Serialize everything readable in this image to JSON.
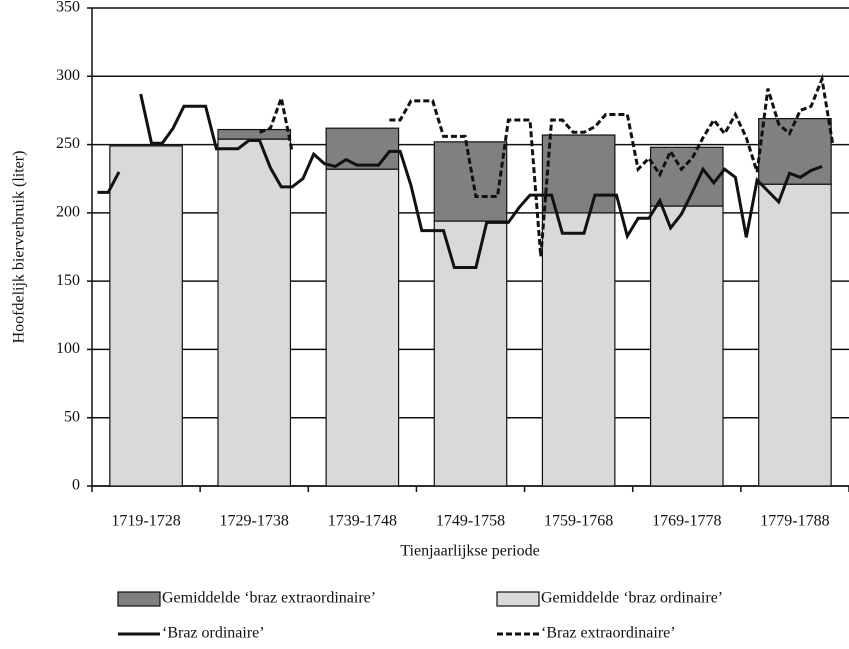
{
  "chart_data": {
    "type": "bar",
    "y_label": "Hoofdelijk bierverbruik (liter)",
    "x_label": "Tienjaarlijkse periode",
    "categories": [
      "1719-1728",
      "1729-1738",
      "1739-1748",
      "1749-1758",
      "1759-1768",
      "1769-1778",
      "1779-1788"
    ],
    "ylim": [
      0,
      350
    ],
    "yticks": [
      0,
      50,
      100,
      150,
      200,
      250,
      300,
      350
    ],
    "grid": true,
    "xlim": [
      1718.5,
      1788.5
    ],
    "x": [
      1719,
      1720,
      1721,
      1722,
      1723,
      1724,
      1725,
      1726,
      1727,
      1728,
      1729,
      1730,
      1731,
      1732,
      1733,
      1734,
      1735,
      1736,
      1737,
      1738,
      1739,
      1740,
      1741,
      1742,
      1743,
      1744,
      1745,
      1746,
      1747,
      1748,
      1749,
      1750,
      1751,
      1752,
      1753,
      1754,
      1755,
      1756,
      1757,
      1758,
      1759,
      1760,
      1761,
      1762,
      1763,
      1764,
      1765,
      1766,
      1767,
      1768,
      1769,
      1770,
      1771,
      1772,
      1773,
      1774,
      1775,
      1776,
      1777,
      1778,
      1779,
      1780,
      1781,
      1782,
      1783,
      1784,
      1785,
      1786,
      1787
    ],
    "series": [
      {
        "name": "Gemiddelde ‘braz extraordinaire’",
        "type": "bar",
        "color": "#808080",
        "values": [
          0,
          7,
          30,
          58,
          57,
          43,
          48
        ]
      },
      {
        "name": "Gemiddelde ‘braz ordinaire’",
        "type": "bar",
        "color": "#d9d9d9",
        "values": [
          249,
          254,
          232,
          194,
          200,
          205,
          221
        ]
      },
      {
        "name": "‘Braz ordinaire’",
        "type": "line",
        "color": "#111111",
        "dash": false,
        "values": [
          215,
          215,
          230,
          null,
          287,
          251,
          251,
          262,
          278,
          278,
          278,
          247,
          247,
          247,
          253,
          253,
          233,
          219,
          219,
          225,
          243,
          236,
          234,
          239,
          235,
          235,
          235,
          245,
          245,
          220,
          187,
          187,
          187,
          160,
          160,
          160,
          193,
          193,
          193,
          204,
          213,
          213,
          213,
          185,
          185,
          185,
          213,
          213,
          213,
          183,
          196,
          196,
          209,
          189,
          199,
          215,
          232,
          222,
          232,
          226,
          182,
          224,
          216,
          208,
          229,
          226,
          231,
          234,
          null
        ]
      },
      {
        "name": "‘Braz extraordinaire’",
        "type": "line",
        "color": "#111111",
        "dash": true,
        "values": [
          null,
          null,
          null,
          null,
          null,
          null,
          null,
          null,
          null,
          null,
          null,
          null,
          null,
          null,
          null,
          259,
          262,
          284,
          245,
          null,
          null,
          null,
          null,
          null,
          null,
          null,
          null,
          268,
          268,
          282,
          282,
          282,
          256,
          256,
          256,
          212,
          212,
          212,
          268,
          268,
          268,
          168,
          268,
          268,
          259,
          259,
          263,
          272,
          272,
          272,
          232,
          240,
          228,
          245,
          232,
          240,
          255,
          268,
          258,
          272,
          255,
          230,
          291,
          265,
          258,
          275,
          278,
          298,
          250
        ]
      }
    ]
  }
}
